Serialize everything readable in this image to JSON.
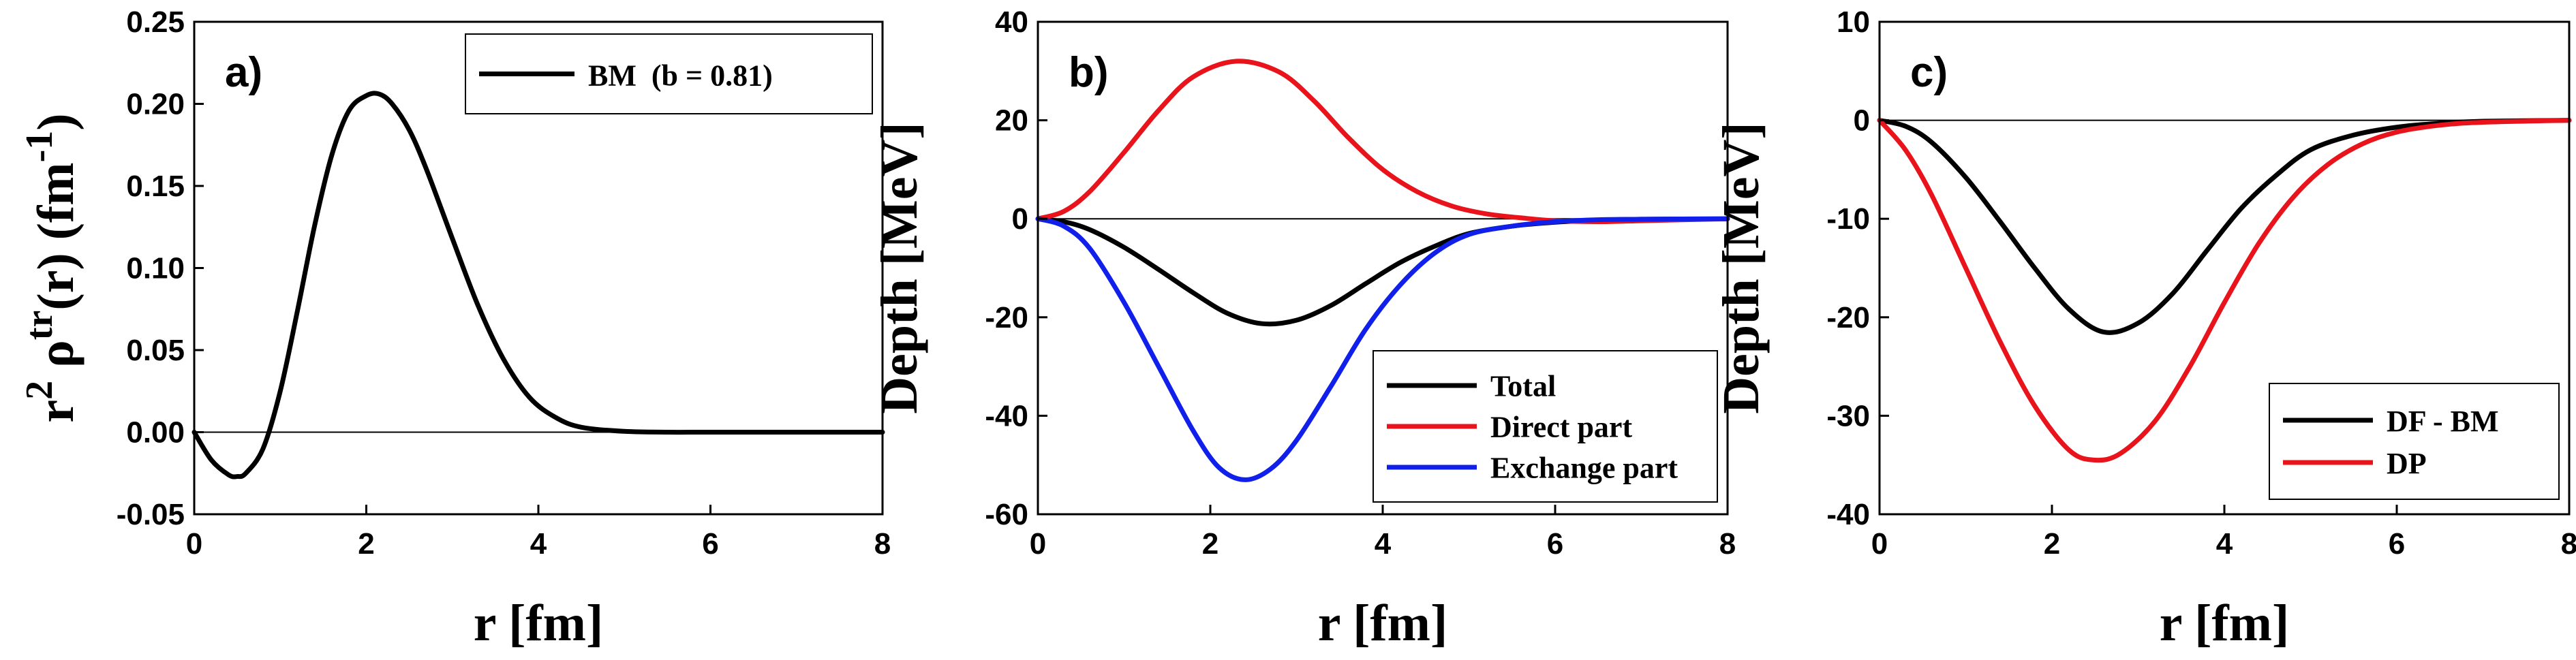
{
  "chart_data": [
    {
      "type": "line",
      "panel_label": "a)",
      "xlabel": "r [fm]",
      "ylabel_parts": [
        "r",
        "2",
        " ρ",
        "tr",
        "(r) (fm",
        "-1",
        ")"
      ],
      "xlim": [
        0,
        8
      ],
      "ylim": [
        -0.05,
        0.25
      ],
      "xticks": [
        "0",
        "2",
        "4",
        "6",
        "8"
      ],
      "yticks": [
        "-0.05",
        "0.00",
        "0.05",
        "0.10",
        "0.15",
        "0.20",
        "0.25"
      ],
      "zero_line": true,
      "legend_position": "top-right",
      "series": [
        {
          "name": "BM  (b = 0.81)",
          "color": "#000000",
          "x": [
            0,
            0.2,
            0.4,
            0.5,
            0.6,
            0.8,
            1.0,
            1.2,
            1.4,
            1.6,
            1.8,
            2.0,
            2.15,
            2.3,
            2.5,
            2.7,
            3.0,
            3.3,
            3.6,
            3.9,
            4.2,
            4.5,
            5.0,
            5.5,
            6.0,
            7.0,
            8.0
          ],
          "values": [
            0,
            -0.017,
            -0.026,
            -0.027,
            -0.025,
            -0.01,
            0.025,
            0.074,
            0.126,
            0.169,
            0.196,
            0.205,
            0.206,
            0.2,
            0.184,
            0.16,
            0.118,
            0.077,
            0.044,
            0.021,
            0.009,
            0.003,
            0.0005,
            0,
            0,
            0,
            0
          ]
        }
      ]
    },
    {
      "type": "line",
      "panel_label": "b)",
      "xlabel": "r [fm]",
      "ylabel": "Depth [MeV]",
      "xlim": [
        0,
        8
      ],
      "ylim": [
        -60,
        40
      ],
      "xticks": [
        "0",
        "2",
        "4",
        "6",
        "8"
      ],
      "yticks": [
        "-60",
        "-40",
        "-20",
        "0",
        "20",
        "40"
      ],
      "zero_line": true,
      "legend_position": "bottom-right",
      "series": [
        {
          "name": "Total",
          "color": "#000000",
          "x": [
            0,
            0.3,
            0.6,
            1.0,
            1.4,
            1.8,
            2.2,
            2.6,
            3.0,
            3.4,
            3.8,
            4.2,
            4.6,
            5.0,
            5.5,
            6.0,
            6.5,
            7.0,
            8.0
          ],
          "values": [
            0,
            -0.6,
            -2.2,
            -5.8,
            -10.3,
            -15.0,
            -19.2,
            -21.3,
            -20.6,
            -17.6,
            -13.2,
            -8.9,
            -5.6,
            -3.0,
            -1.5,
            -0.7,
            -0.3,
            -0.1,
            0
          ]
        },
        {
          "name": "Direct part",
          "color": "#e8131b",
          "x": [
            0,
            0.3,
            0.6,
            1.0,
            1.4,
            1.8,
            2.3,
            2.8,
            3.2,
            3.6,
            4.0,
            4.4,
            4.8,
            5.2,
            5.6,
            6.0,
            6.5,
            7.0,
            8.0
          ],
          "values": [
            0,
            1.5,
            5.5,
            13.5,
            22.0,
            28.8,
            32.0,
            29.8,
            24.0,
            16.5,
            10.0,
            5.5,
            2.6,
            1.0,
            0.2,
            -0.4,
            -0.6,
            -0.4,
            0
          ]
        },
        {
          "name": "Exchange part",
          "color": "#1020ea",
          "x": [
            0,
            0.3,
            0.6,
            1.0,
            1.4,
            1.8,
            2.1,
            2.4,
            2.7,
            3.0,
            3.4,
            3.8,
            4.2,
            4.6,
            5.0,
            5.5,
            6.0,
            6.5,
            7.0,
            8.0
          ],
          "values": [
            0,
            -1.5,
            -6.0,
            -17.0,
            -30.0,
            -43.0,
            -50.5,
            -53.0,
            -50.8,
            -45.0,
            -34.0,
            -22.5,
            -13.5,
            -7.0,
            -3.2,
            -1.5,
            -0.6,
            -0.2,
            -0.1,
            0
          ]
        }
      ]
    },
    {
      "type": "line",
      "panel_label": "c)",
      "xlabel": "r [fm]",
      "ylabel": "Depth [MeV]",
      "xlim": [
        0,
        8
      ],
      "ylim": [
        -40,
        10
      ],
      "xticks": [
        "0",
        "2",
        "4",
        "6",
        "8"
      ],
      "yticks": [
        "-40",
        "-30",
        "-20",
        "-10",
        "0",
        "10"
      ],
      "zero_line": true,
      "legend_position": "bottom-right",
      "series": [
        {
          "name": "DF - BM",
          "color": "#000000",
          "x": [
            0,
            0.3,
            0.6,
            1.0,
            1.4,
            1.8,
            2.2,
            2.6,
            3.0,
            3.4,
            3.8,
            4.2,
            4.6,
            5.0,
            5.5,
            6.0,
            6.5,
            7.0,
            8.0
          ],
          "values": [
            0,
            -0.6,
            -2.2,
            -5.8,
            -10.3,
            -15.0,
            -19.2,
            -21.5,
            -20.6,
            -17.6,
            -13.2,
            -8.9,
            -5.6,
            -3.0,
            -1.5,
            -0.7,
            -0.3,
            -0.1,
            0
          ]
        },
        {
          "name": "DP",
          "color": "#e8131b",
          "x": [
            0,
            0.3,
            0.6,
            1.0,
            1.4,
            1.8,
            2.2,
            2.5,
            2.8,
            3.2,
            3.6,
            4.0,
            4.4,
            4.8,
            5.2,
            5.6,
            6.0,
            6.5,
            7.0,
            8.0
          ],
          "values": [
            0,
            -3.0,
            -7.5,
            -15.0,
            -22.5,
            -29.0,
            -33.5,
            -34.5,
            -33.8,
            -30.5,
            -25.0,
            -18.5,
            -12.5,
            -7.8,
            -4.5,
            -2.4,
            -1.2,
            -0.5,
            -0.2,
            0
          ]
        }
      ]
    }
  ]
}
